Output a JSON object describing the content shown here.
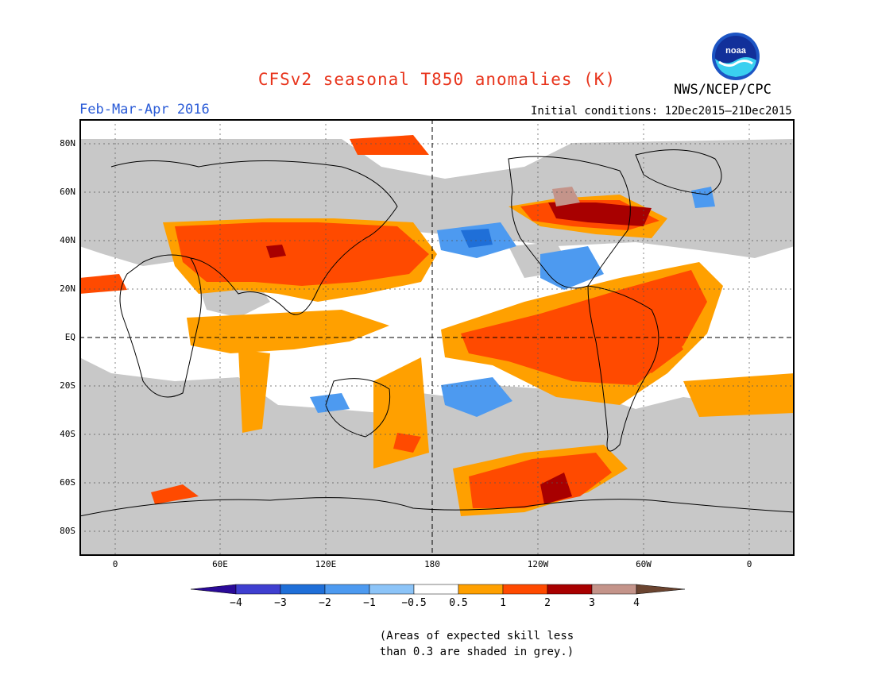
{
  "title": "CFSv2 seasonal T850 anomalies (K)",
  "title_color": "#e8341c",
  "agency": "NWS/NCEP/CPC",
  "logo_label": "noaa",
  "season": "Feb-Mar-Apr 2016",
  "initial_conditions": "Initial conditions: 12Dec2015–21Dec2015",
  "lat_ticks": [
    "80N",
    "60N",
    "40N",
    "20N",
    "EQ",
    "20S",
    "40S",
    "60S",
    "80S"
  ],
  "lon_ticks": [
    "0",
    "60E",
    "120E",
    "180",
    "120W",
    "60W",
    "0"
  ],
  "colorbar": {
    "thresholds": [
      "−4",
      "−3",
      "−2",
      "−1",
      "−0.5",
      "0.5",
      "1",
      "2",
      "3",
      "4"
    ],
    "colors": [
      "#2a0a98",
      "#3f3fd0",
      "#1f6fd8",
      "#4d9af0",
      "#8cc4f8",
      "#ffffff",
      "#ffa000",
      "#ff4a00",
      "#a80000",
      "#c4948a",
      "#6b4430"
    ]
  },
  "skill_mask_color": "#c8c8c8",
  "note_line1": "(Areas of expected skill less",
  "note_line2": "than 0.3 are shaded in grey.)"
}
